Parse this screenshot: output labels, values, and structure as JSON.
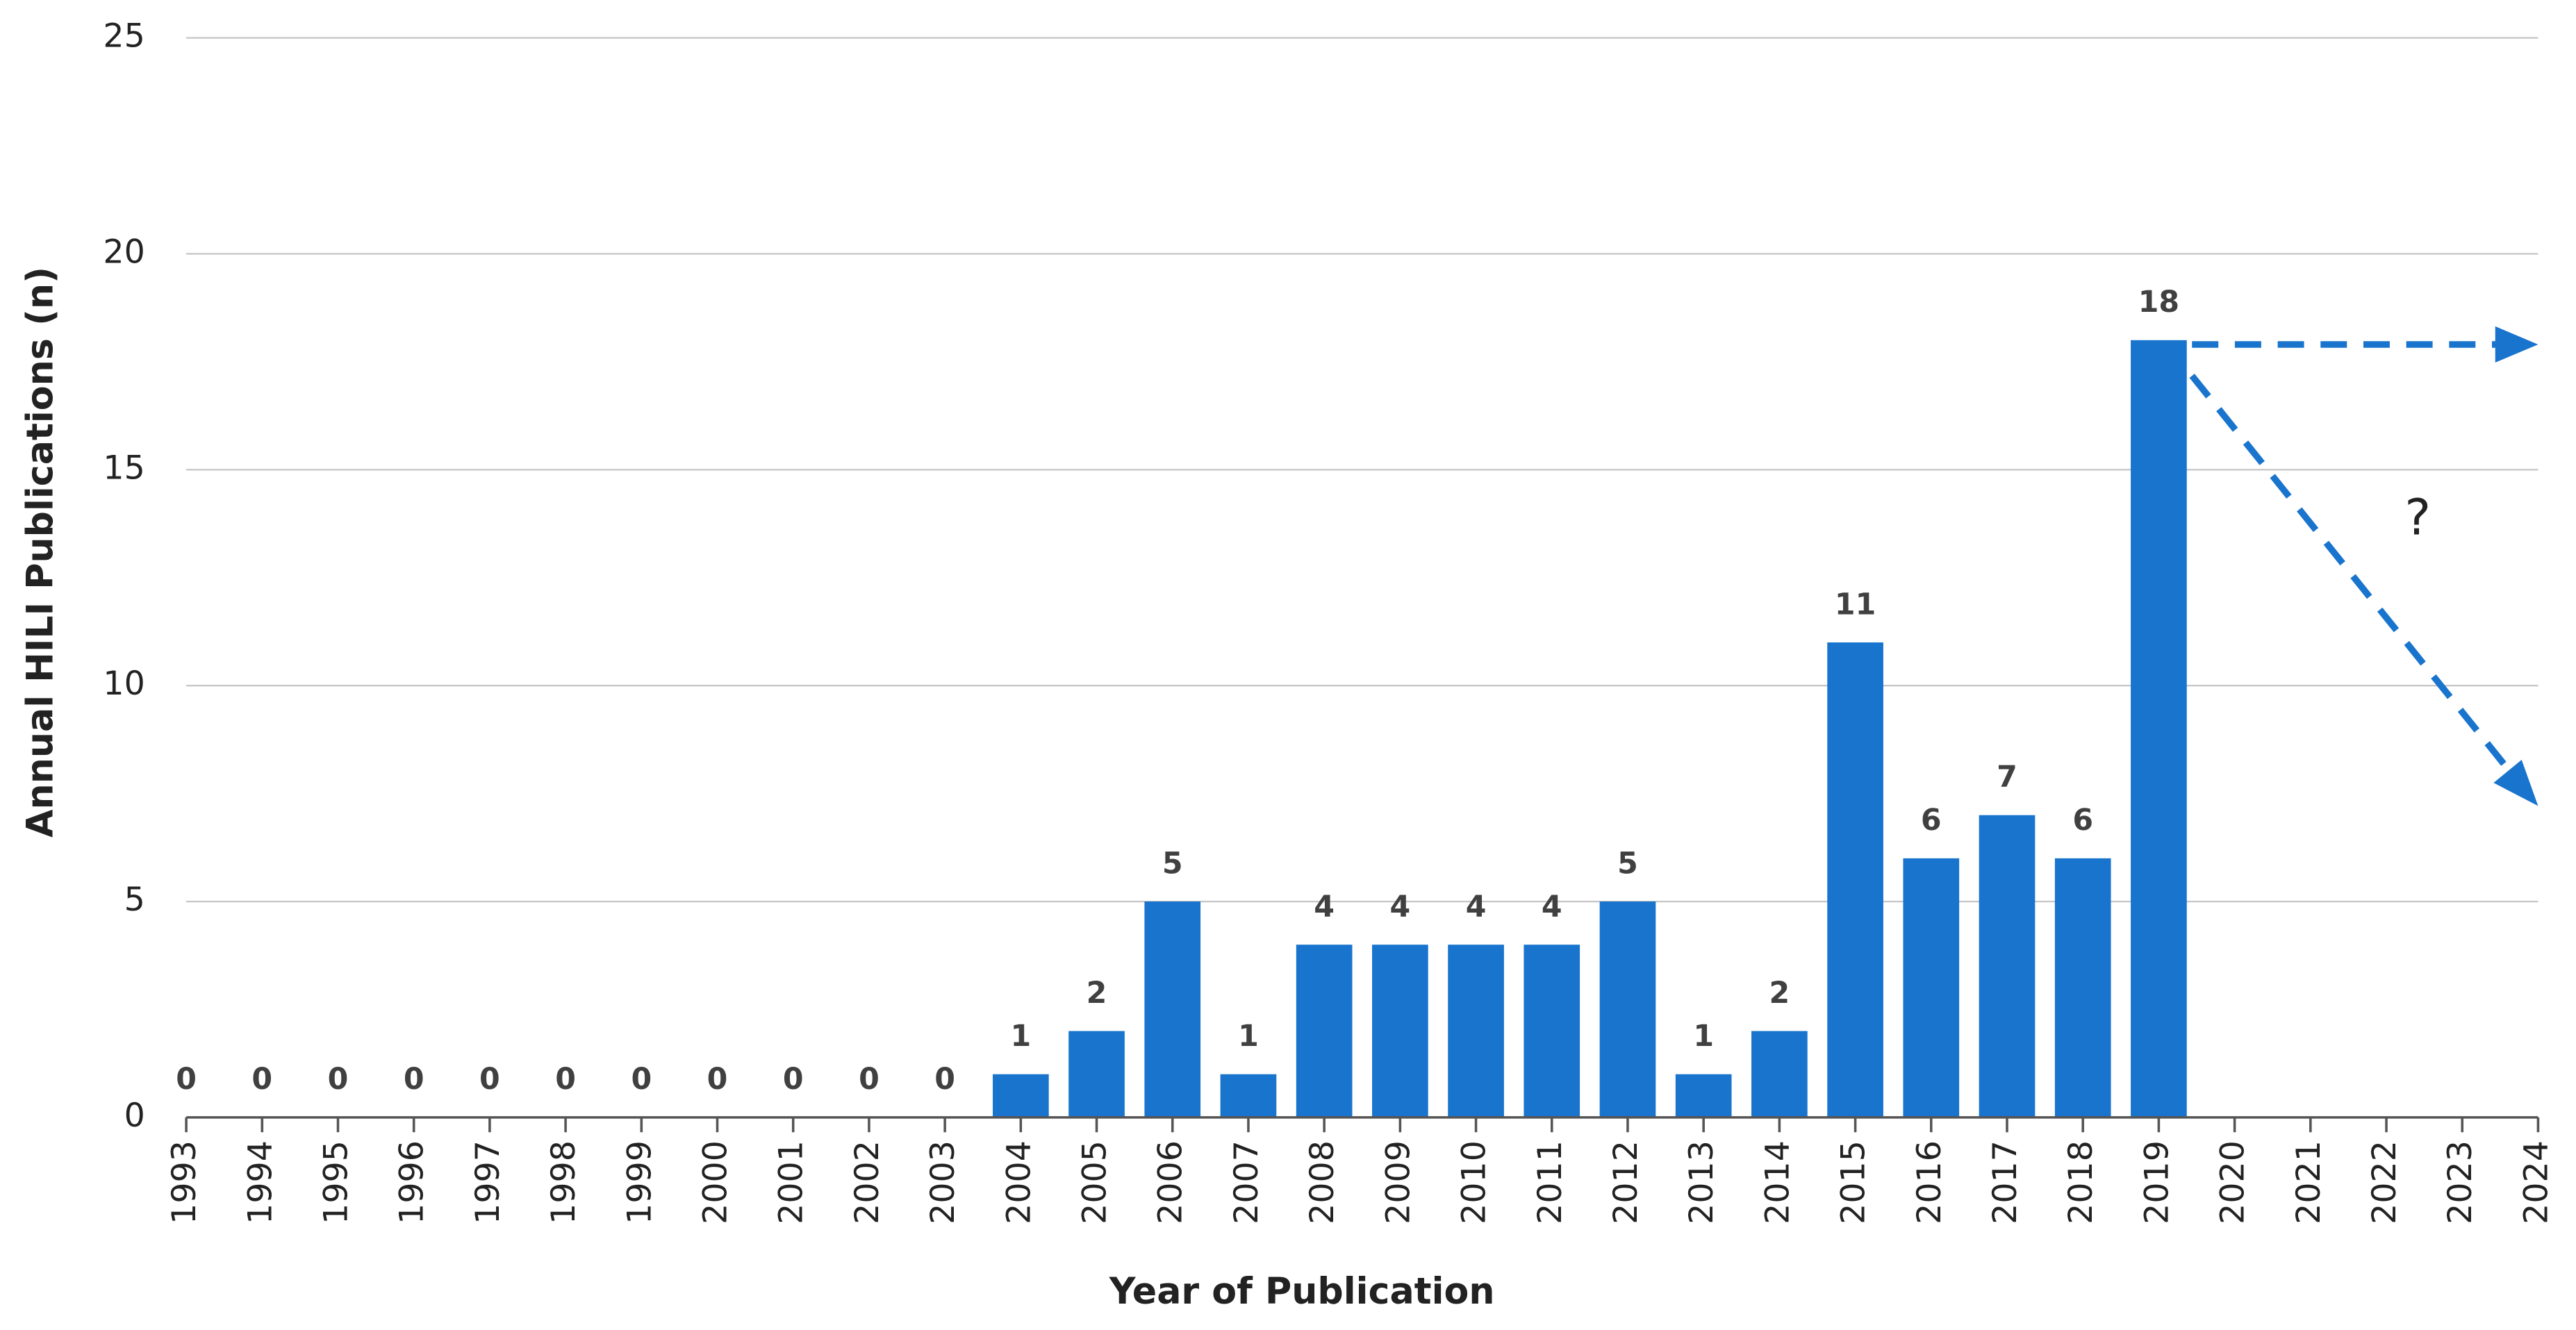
{
  "chart_data": {
    "type": "bar",
    "x": [
      1993,
      1994,
      1995,
      1996,
      1997,
      1998,
      1999,
      2000,
      2001,
      2002,
      2003,
      2004,
      2005,
      2006,
      2007,
      2008,
      2009,
      2010,
      2011,
      2012,
      2013,
      2014,
      2015,
      2016,
      2017,
      2018,
      2019
    ],
    "values": [
      0,
      0,
      0,
      0,
      0,
      0,
      0,
      0,
      0,
      0,
      0,
      1,
      2,
      5,
      1,
      4,
      4,
      4,
      4,
      5,
      1,
      2,
      11,
      6,
      7,
      6,
      18
    ],
    "color": "#1874cd",
    "xlim": [
      1993,
      2024
    ],
    "xticks": [
      1993,
      1994,
      1995,
      1996,
      1997,
      1998,
      1999,
      2000,
      2001,
      2002,
      2003,
      2004,
      2005,
      2006,
      2007,
      2008,
      2009,
      2010,
      2011,
      2012,
      2013,
      2014,
      2015,
      2016,
      2017,
      2018,
      2019,
      2020,
      2021,
      2022,
      2023,
      2024
    ],
    "ylim": [
      0,
      25
    ],
    "yticks": [
      0,
      5,
      10,
      15,
      20,
      25
    ],
    "grid": true,
    "x_label": "Year of Publication",
    "y_label": "Annual HILI Publications (n)",
    "annotation": "?"
  }
}
